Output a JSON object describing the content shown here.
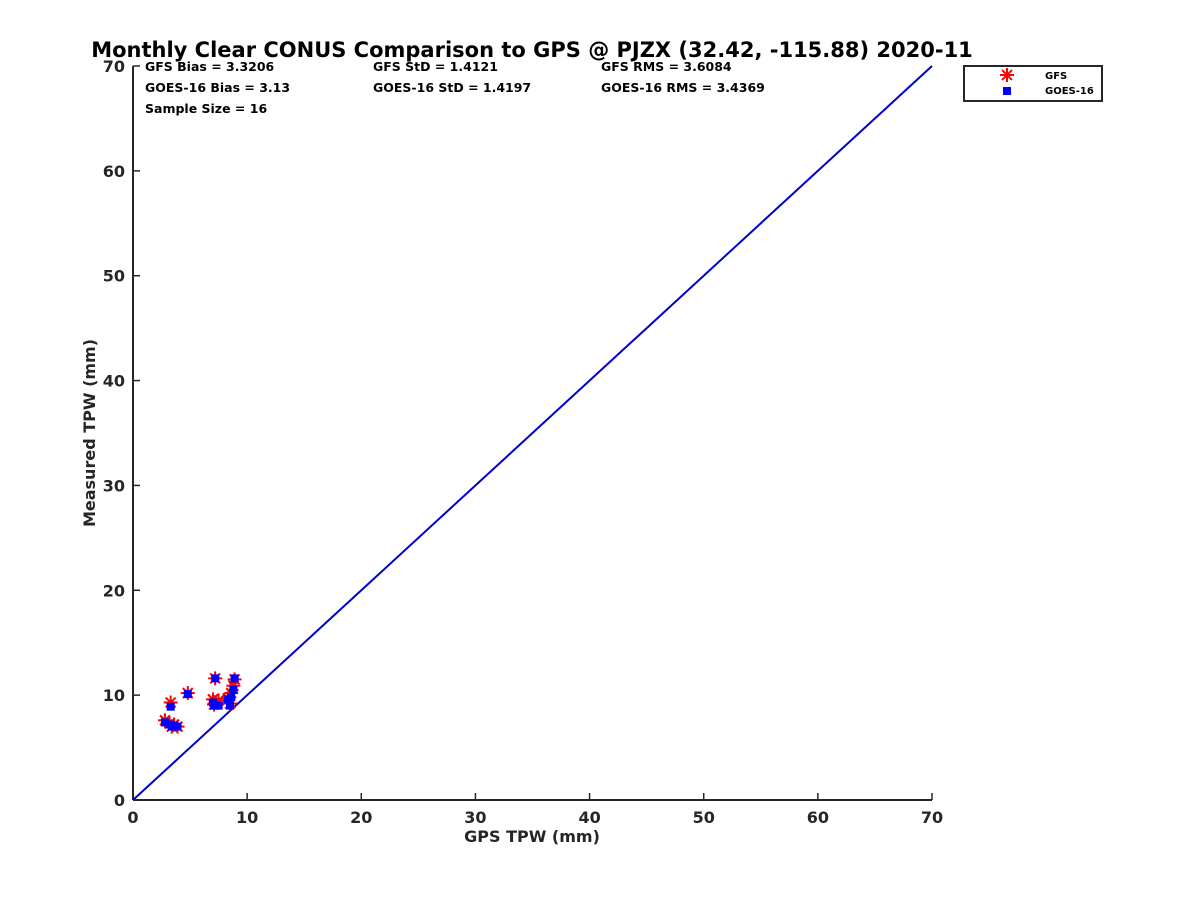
{
  "chart_data": {
    "type": "scatter",
    "title": "Monthly Clear CONUS Comparison to GPS @ PJZX (32.42, -115.88) 2020-11",
    "xlabel": "GPS TPW (mm)",
    "ylabel": "Measured TPW (mm)",
    "xlim": [
      0,
      70
    ],
    "ylim": [
      0,
      70
    ],
    "xticks": [
      "0",
      "10",
      "20",
      "30",
      "40",
      "50",
      "60",
      "70"
    ],
    "yticks": [
      "0",
      "10",
      "20",
      "30",
      "40",
      "50",
      "60",
      "70"
    ],
    "stats": [
      [
        "GFS Bias = 3.3206",
        "GFS StD = 1.4121",
        "GFS RMS = 3.6084"
      ],
      [
        "GOES-16 Bias = 3.13",
        "GOES-16 StD = 1.4197",
        "GOES-16 RMS = 3.4369"
      ],
      [
        "Sample Size = 16"
      ]
    ],
    "reference_line": {
      "from": [
        0,
        0
      ],
      "to": [
        70,
        70
      ],
      "color": "#0000cc"
    },
    "legend": {
      "position": "outside-top-right",
      "entries": [
        "GFS",
        "GOES-16"
      ]
    },
    "series": [
      {
        "name": "GFS",
        "marker": "asterisk",
        "color": "#ff0000",
        "x": [
          2.8,
          3.2,
          3.4,
          3.6,
          3.9,
          3.3,
          4.8,
          7.0,
          7.2,
          7.5,
          8.3,
          8.5,
          8.6,
          8.8,
          8.9,
          7.1
        ],
        "y": [
          7.6,
          7.3,
          7.0,
          7.2,
          7.0,
          9.3,
          10.2,
          9.6,
          11.6,
          9.5,
          9.7,
          9.2,
          10.2,
          10.9,
          11.5,
          9.1
        ]
      },
      {
        "name": "GOES-16",
        "marker": "square",
        "color": "#0000ff",
        "x": [
          2.8,
          3.2,
          3.4,
          3.6,
          3.9,
          3.3,
          4.8,
          7.0,
          7.2,
          7.5,
          8.3,
          8.5,
          8.6,
          8.8,
          8.9,
          7.1
        ],
        "y": [
          7.4,
          7.2,
          7.0,
          7.1,
          7.0,
          8.9,
          10.1,
          9.3,
          11.6,
          9.0,
          9.6,
          9.0,
          9.8,
          10.5,
          11.6,
          9.0
        ]
      }
    ]
  }
}
